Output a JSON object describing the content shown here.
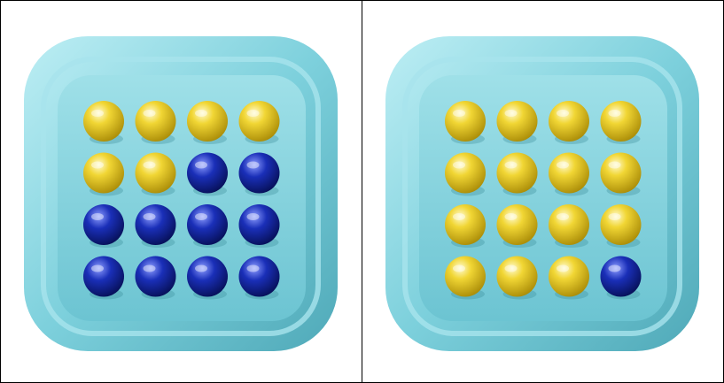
{
  "colors": {
    "background": "#ffffff",
    "tray": "#7dd0dc",
    "tray_dark": "#4fa9b8",
    "tray_light": "#bdeef4",
    "yellow": "#f1d634",
    "blue": "#1a2fb8"
  },
  "trays": [
    {
      "name": "left-tray",
      "grid": [
        [
          "yellow",
          "yellow",
          "yellow",
          "yellow"
        ],
        [
          "yellow",
          "yellow",
          "blue",
          "blue"
        ],
        [
          "blue",
          "blue",
          "blue",
          "blue"
        ],
        [
          "blue",
          "blue",
          "blue",
          "blue"
        ]
      ],
      "counts": {
        "yellow": 6,
        "blue": 10
      }
    },
    {
      "name": "right-tray",
      "grid": [
        [
          "yellow",
          "yellow",
          "yellow",
          "yellow"
        ],
        [
          "yellow",
          "yellow",
          "yellow",
          "yellow"
        ],
        [
          "yellow",
          "yellow",
          "yellow",
          "yellow"
        ],
        [
          "yellow",
          "yellow",
          "yellow",
          "blue"
        ]
      ],
      "counts": {
        "yellow": 15,
        "blue": 1
      }
    }
  ]
}
